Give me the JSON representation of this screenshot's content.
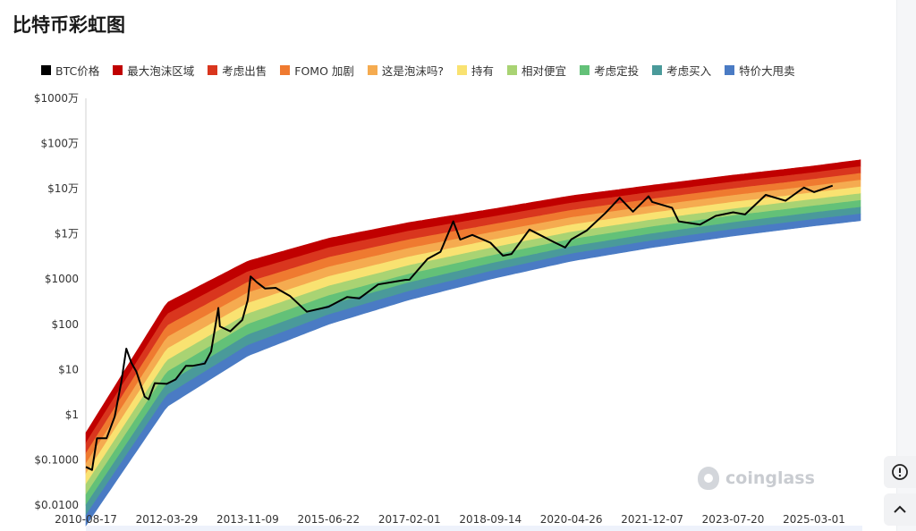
{
  "page": {
    "title": "比特币彩虹图",
    "watermark": "coinglass"
  },
  "colors": {
    "btc_line": "#000000",
    "bands": [
      "#c00000",
      "#d9361e",
      "#ef7a30",
      "#f5ab50",
      "#f9e271",
      "#a9d373",
      "#63c178",
      "#4a9a9a",
      "#4a7bc4"
    ]
  },
  "icons": [
    "info-icon",
    "chevron-up-icon"
  ],
  "chart_data": {
    "type": "line",
    "title": "比特币彩虹图",
    "legend": [
      {
        "name": "BTC价格",
        "color": "#000000"
      },
      {
        "name": "最大泡沫区域",
        "color": "#c00000"
      },
      {
        "name": "考虑出售",
        "color": "#d9361e"
      },
      {
        "name": "FOMO 加剧",
        "color": "#ef7a30"
      },
      {
        "name": "这是泡沫吗?",
        "color": "#f5ab50"
      },
      {
        "name": "持有",
        "color": "#f9e271"
      },
      {
        "name": "相对便宜",
        "color": "#a9d373"
      },
      {
        "name": "考虑定投",
        "color": "#63c178"
      },
      {
        "name": "考虑买入",
        "color": "#4a9a9a"
      },
      {
        "name": "特价大甩卖",
        "color": "#4a7bc4"
      }
    ],
    "legend_position": "top",
    "y_scale": "log",
    "y_ticks": [
      "$1000万",
      "$100万",
      "$10万",
      "$1万",
      "$1000",
      "$100",
      "$10",
      "$1",
      "$0.1000",
      "$0.0100"
    ],
    "y_tick_values": [
      10000000,
      1000000,
      100000,
      10000,
      1000,
      100,
      10,
      1,
      0.1,
      0.01
    ],
    "ylim": [
      0.01,
      10000000
    ],
    "x_ticks": [
      "2010-08-17",
      "2012-03-29",
      "2013-11-09",
      "2015-06-22",
      "2017-02-01",
      "2018-09-14",
      "2020-04-26",
      "2021-12-07",
      "2023-07-20",
      "2025-03-01"
    ],
    "xlim": [
      "2010-08-17",
      "2026-07-01"
    ],
    "rainbow_bands": {
      "x": [
        "2010-08-17",
        "2012-03-29",
        "2013-11-09",
        "2015-06-22",
        "2017-02-01",
        "2018-09-14",
        "2020-04-26",
        "2021-12-07",
        "2023-07-20",
        "2025-03-01",
        "2026-07-01"
      ],
      "top": [
        0.4,
        300,
        2500,
        8000,
        18000,
        35000,
        70000,
        120000,
        200000,
        320000,
        500000
      ],
      "bottom": [
        0.0035,
        1.5,
        20,
        100,
        350,
        1000,
        2500,
        5000,
        9000,
        15000,
        22000
      ]
    },
    "series": [
      {
        "name": "BTC价格",
        "x": [
          "2010-08-17",
          "2010-10-01",
          "2010-11-06",
          "2011-01-15",
          "2011-03-15",
          "2011-05-01",
          "2011-06-08",
          "2011-07-15",
          "2011-08-20",
          "2011-10-20",
          "2011-11-18",
          "2012-01-01",
          "2012-03-29",
          "2012-06-01",
          "2012-08-15",
          "2012-10-01",
          "2012-12-31",
          "2013-02-15",
          "2013-04-09",
          "2013-04-20",
          "2013-07-05",
          "2013-10-01",
          "2013-11-09",
          "2013-11-30",
          "2014-01-15",
          "2014-03-15",
          "2014-06-01",
          "2014-09-15",
          "2015-01-14",
          "2015-06-22",
          "2015-11-04",
          "2016-02-01",
          "2016-06-17",
          "2016-12-31",
          "2017-02-01",
          "2017-06-12",
          "2017-09-15",
          "2017-12-17",
          "2018-02-06",
          "2018-05-05",
          "2018-09-14",
          "2018-12-15",
          "2019-02-15",
          "2019-06-26",
          "2019-12-17",
          "2020-03-12",
          "2020-04-26",
          "2020-08-15",
          "2020-12-31",
          "2021-04-14",
          "2021-07-20",
          "2021-11-10",
          "2021-12-07",
          "2022-05-01",
          "2022-06-18",
          "2022-11-21",
          "2023-03-15",
          "2023-07-20",
          "2023-10-15",
          "2024-03-14",
          "2024-08-05",
          "2024-12-17",
          "2025-03-01",
          "2025-07-15"
        ],
        "y": [
          0.07,
          0.06,
          0.3,
          0.3,
          0.9,
          5,
          29,
          14,
          9,
          2.5,
          2.2,
          5,
          4.8,
          6,
          12,
          12,
          13.5,
          25,
          230,
          90,
          70,
          125,
          340,
          1150,
          850,
          620,
          640,
          420,
          190,
          245,
          400,
          375,
          760,
          960,
          970,
          2800,
          4000,
          19000,
          7500,
          9500,
          6400,
          3300,
          3600,
          12500,
          6700,
          5000,
          7600,
          11800,
          29000,
          63000,
          31000,
          68000,
          51000,
          38000,
          19000,
          16000,
          25000,
          30000,
          27000,
          73000,
          54000,
          106000,
          84000,
          117000
        ]
      }
    ]
  }
}
